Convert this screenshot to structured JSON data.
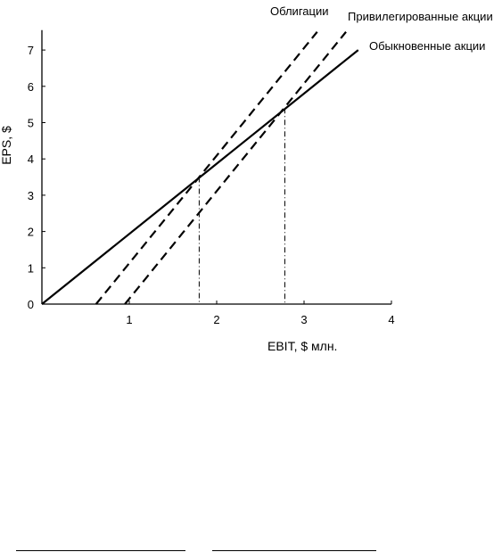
{
  "chart_data": {
    "type": "line",
    "xlabel": "EBIT, $ млн.",
    "ylabel": "EPS, $",
    "xlim": [
      0,
      4
    ],
    "ylim": [
      0,
      7.5
    ],
    "x_ticks": [
      1,
      2,
      3,
      4
    ],
    "y_ticks": [
      0,
      1,
      2,
      3,
      4,
      5,
      6,
      7
    ],
    "grid": false,
    "legend": "none (series labels placed at line ends, top-right)",
    "series": [
      {
        "name": "Облигации",
        "style": "dashed",
        "color": "#000000",
        "x": [
          0.62,
          3.15
        ],
        "y": [
          0,
          7.5
        ]
      },
      {
        "name": "Привилегированные акции",
        "style": "dashed",
        "color": "#000000",
        "x": [
          0.95,
          3.48
        ],
        "y": [
          0,
          7.5
        ]
      },
      {
        "name": "Обыкновенные акции",
        "style": "solid",
        "color": "#000000",
        "x": [
          0,
          3.62
        ],
        "y": [
          0,
          7.0
        ]
      }
    ],
    "indifference_points": [
      {
        "x": 1.8,
        "y": 3.5
      },
      {
        "x": 2.78,
        "y": 5.4
      }
    ]
  }
}
